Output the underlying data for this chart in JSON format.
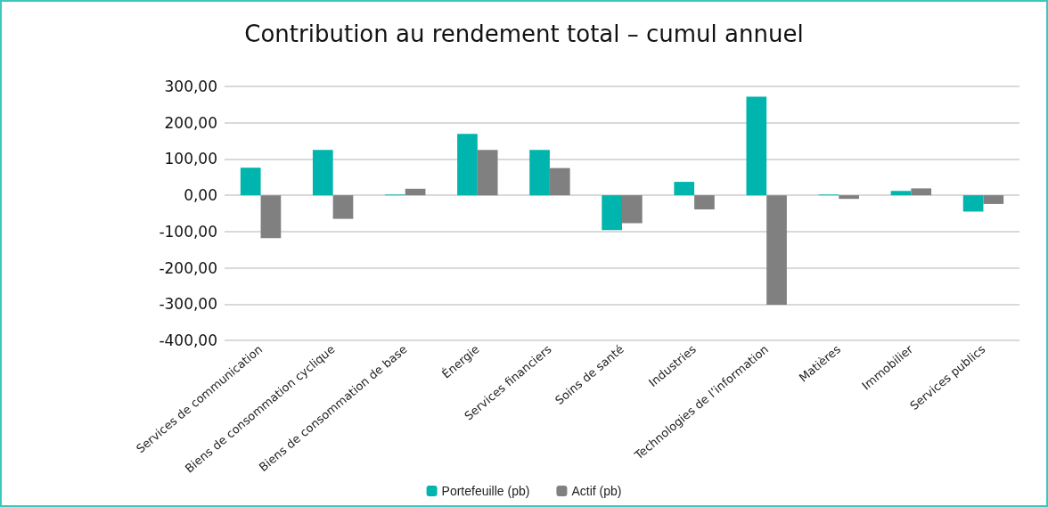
{
  "chart_data": {
    "type": "bar",
    "title": "Contribution au rendement total – cumul annuel",
    "categories": [
      "Services de communication",
      "Biens de consommation cyclique",
      "Biens de consommation de base",
      "Énergie",
      "Services financiers",
      "Soins de santé",
      "Industries",
      "Technologies de l’information",
      "Matières",
      "Immobilier",
      "Services publics"
    ],
    "series": [
      {
        "name": "Portefeuille (pb)",
        "color": "#00b5ad",
        "values": [
          76,
          125,
          2,
          169,
          125,
          -96,
          37,
          272,
          2,
          12,
          -45
        ]
      },
      {
        "name": "Actif (pb)",
        "color": "#808080",
        "values": [
          -118,
          -65,
          18,
          125,
          75,
          -77,
          -39,
          -302,
          -10,
          19,
          -24
        ]
      }
    ],
    "ylim": [
      -400,
      300
    ],
    "yticks": [
      {
        "value": -400,
        "label": "-400,00"
      },
      {
        "value": -300,
        "label": "-300,00"
      },
      {
        "value": -200,
        "label": "-200,00"
      },
      {
        "value": -100,
        "label": "-100,00"
      },
      {
        "value": 0,
        "label": "0,00"
      },
      {
        "value": 100,
        "label": "100,00"
      },
      {
        "value": 200,
        "label": "200,00"
      },
      {
        "value": 300,
        "label": "300,00"
      }
    ],
    "grid": "y",
    "legend": "bottom"
  }
}
